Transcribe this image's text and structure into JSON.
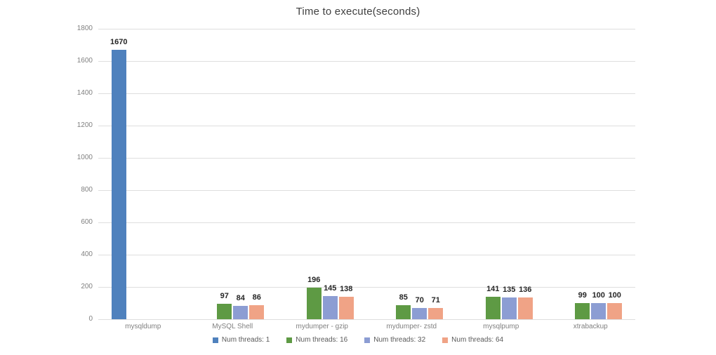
{
  "chart_data": {
    "type": "bar",
    "title": "Time to execute(seconds)",
    "categories": [
      "mysqldump",
      "MySQL Shell",
      "mydumper - gzip",
      "mydumper- zstd",
      "mysqlpump",
      "xtrabackup"
    ],
    "series": [
      {
        "name": "Num threads: 1",
        "color": "#4f81bd",
        "values": [
          1670,
          null,
          null,
          null,
          null,
          null
        ]
      },
      {
        "name": "Num threads: 16",
        "color": "#5e9a44",
        "values": [
          null,
          97,
          196,
          85,
          141,
          99
        ]
      },
      {
        "name": "Num threads: 32",
        "color": "#8c9dd3",
        "values": [
          null,
          84,
          145,
          70,
          135,
          100
        ]
      },
      {
        "name": "Num threads: 64",
        "color": "#f0a386",
        "values": [
          null,
          86,
          138,
          71,
          136,
          100
        ]
      }
    ],
    "ylim": [
      0,
      1800
    ],
    "yticks": [
      0,
      200,
      400,
      600,
      800,
      1000,
      1200,
      1400,
      1600,
      1800
    ],
    "grid": "horizontal-only",
    "legend_position": "bottom",
    "xlabel": "",
    "ylabel": ""
  },
  "colors": {
    "background": "#ffffff",
    "gridline": "#dedede",
    "title_text": "#404040",
    "axis_text": "#808080",
    "value_label_text": "#262626",
    "legend_text": "#595959"
  }
}
